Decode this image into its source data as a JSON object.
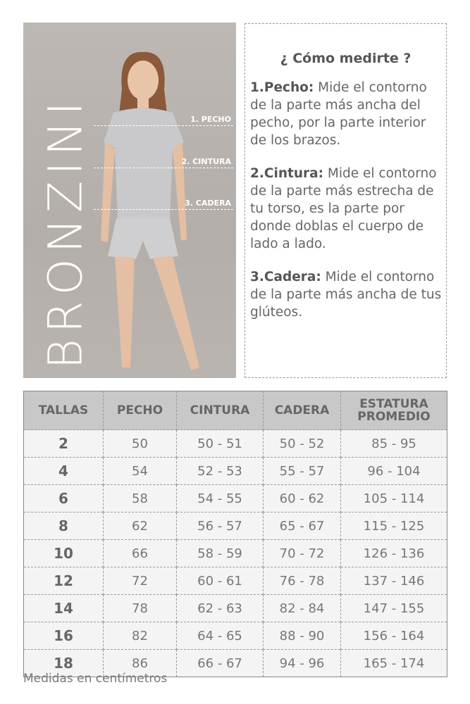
{
  "brand": {
    "logo_text": "BRONZINI"
  },
  "photo": {
    "labels": [
      "1. PECHO",
      "2. CINTURA",
      "3. CADERA"
    ]
  },
  "howto": {
    "title": "¿ Cómo medirte ?",
    "items": [
      {
        "term": "1.Pecho:",
        "text": " Mide el contorno de la parte más ancha del pecho, por la parte interior de los brazos."
      },
      {
        "term": "2.Cintura:",
        "text": " Mide el contorno de la parte más estrecha de tu torso, es la parte por donde doblas el cuerpo de lado a lado."
      },
      {
        "term": "3.Cadera:",
        "text": " Mide el contorno de la parte más ancha de tus glúteos."
      }
    ]
  },
  "table": {
    "headers": [
      "TALLAS",
      "PECHO",
      "CINTURA",
      "CADERA",
      "ESTATURA PROMEDIO"
    ],
    "rows": [
      [
        "2",
        "50",
        "50 - 51",
        "50 - 52",
        "85 - 95"
      ],
      [
        "4",
        "54",
        "52 - 53",
        "55 - 57",
        "96 - 104"
      ],
      [
        "6",
        "58",
        "54 - 55",
        "60 - 62",
        "105 - 114"
      ],
      [
        "8",
        "62",
        "56 - 57",
        "65 - 67",
        "115 - 125"
      ],
      [
        "10",
        "66",
        "58 - 59",
        "70 - 72",
        "126 - 136"
      ],
      [
        "12",
        "72",
        "60 - 61",
        "76 - 78",
        "137 - 146"
      ],
      [
        "14",
        "78",
        "62 - 63",
        "82 - 84",
        "147 - 155"
      ],
      [
        "16",
        "82",
        "64 - 65",
        "88 - 90",
        "156 - 164"
      ],
      [
        "18",
        "86",
        "66 - 67",
        "94 - 96",
        "165 - 174"
      ]
    ]
  },
  "footer": "Medidas en centímetros"
}
